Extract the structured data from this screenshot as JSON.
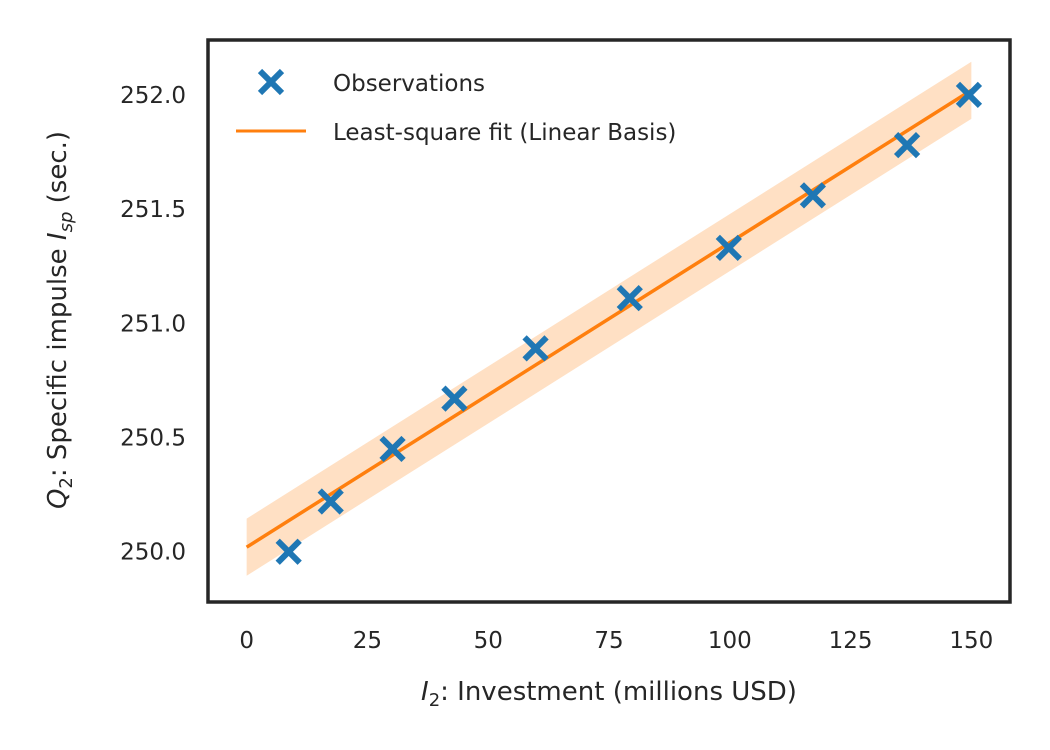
{
  "chart_data": {
    "type": "scatter",
    "xlabel": {
      "sym": "I",
      "sub": "2",
      "rest": ": Investment (millions USD)"
    },
    "ylabel": {
      "sym1": "Q",
      "sub1": "2",
      "mid": ": Specific impulse ",
      "sym2": "I",
      "sub2": "sp",
      "end": " (sec.)"
    },
    "xlim": [
      -8,
      158
    ],
    "ylim": [
      249.78,
      252.24
    ],
    "xticks": [
      0,
      25,
      50,
      75,
      100,
      125,
      150
    ],
    "yticks": [
      250.0,
      250.5,
      251.0,
      251.5,
      252.0
    ],
    "xtick_labels": [
      "0",
      "25",
      "50",
      "75",
      "100",
      "125",
      "150"
    ],
    "ytick_labels": [
      "250.0",
      "250.5",
      "251.0",
      "251.5",
      "252.0"
    ],
    "grid": false,
    "legend_position": "top-left",
    "series": [
      {
        "name": "Observations",
        "kind": "scatter",
        "marker": "x",
        "color": "#1f77b4",
        "x": [
          8.7,
          17.4,
          30.2,
          43.0,
          59.8,
          79.3,
          99.8,
          117.2,
          136.7,
          149.5
        ],
        "y": [
          250.0,
          250.22,
          250.45,
          250.67,
          250.89,
          251.11,
          251.33,
          251.56,
          251.78,
          252.0
        ]
      },
      {
        "name": "Least-square fit (Linear Basis)",
        "kind": "line",
        "color": "#ff7f0e",
        "x": [
          0,
          150
        ],
        "y": [
          250.02,
          252.02
        ],
        "band_halfwidth": 0.125,
        "band_color": "#ffd5b0"
      }
    ]
  }
}
